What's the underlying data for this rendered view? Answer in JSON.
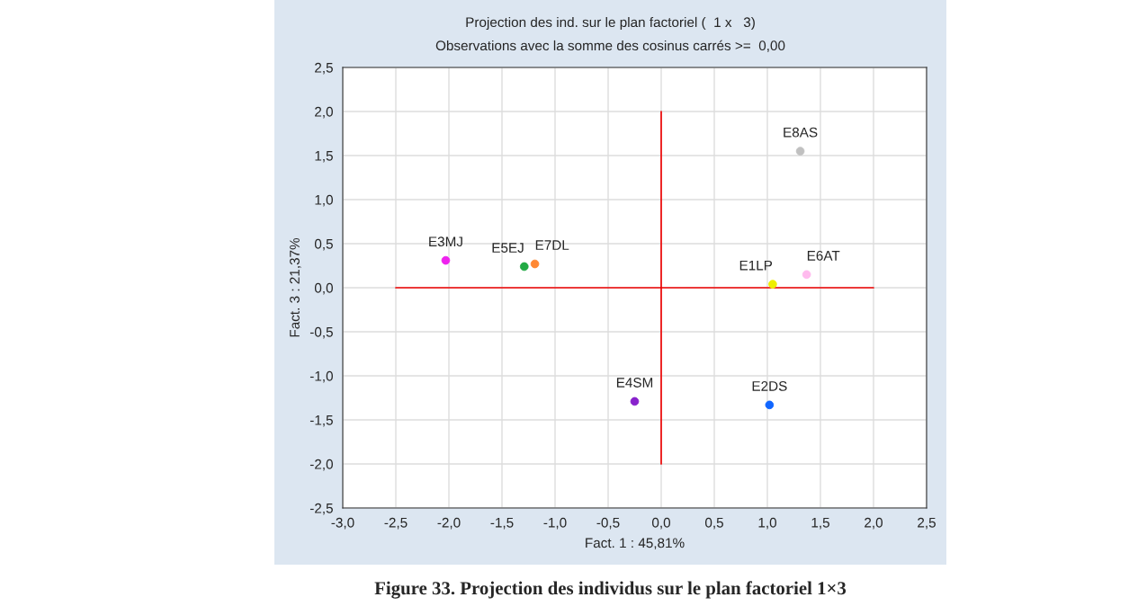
{
  "chart_data": {
    "type": "scatter",
    "title": "Projection des ind. sur le plan factoriel (  1 x   3)",
    "subtitle": "Observations avec la somme des cosinus carrés >=  0,00",
    "xlabel": "Fact. 1 : 45,81%",
    "ylabel": "Fact. 3 : 21,37%",
    "series": [
      {
        "marker": "circle",
        "x": [
          -2.03,
          -1.29,
          -1.19,
          1.31,
          1.05,
          1.37,
          -0.25,
          1.02
        ],
        "values": [
          0.31,
          0.24,
          0.27,
          1.55,
          0.04,
          0.15,
          -1.29,
          -1.33
        ],
        "colors": [
          "#ee22ee",
          "#22aa44",
          "#ff8833",
          "#c0c0c0",
          "#eeee00",
          "#ffbbee",
          "#8822cc",
          "#1166ff"
        ]
      },
      {
        "type": "line",
        "x": [
          -2.5,
          2.0
        ],
        "values": [
          0,
          0
        ],
        "color": "#ee0000"
      },
      {
        "type": "line",
        "x": [
          0,
          0
        ],
        "values": [
          -2.0,
          2.0
        ],
        "color": "#ee0000"
      }
    ],
    "annotations": [
      {
        "text": "E3MJ",
        "x": -2.03,
        "y": 0.31
      },
      {
        "text": "E5EJ",
        "x": -1.29,
        "y": 0.24
      },
      {
        "text": "E7DL",
        "x": -1.19,
        "y": 0.27
      },
      {
        "text": "E8AS",
        "x": 1.31,
        "y": 1.55
      },
      {
        "text": "E1LP",
        "x": 1.05,
        "y": 0.04
      },
      {
        "text": "E6AT",
        "x": 1.37,
        "y": 0.15
      },
      {
        "text": "E4SM",
        "x": -0.25,
        "y": -1.29
      },
      {
        "text": "E2DS",
        "x": 1.02,
        "y": -1.33
      },
      "Figure 33. Projection des individus sur le plan factoriel 1×3"
    ],
    "xlim": [
      -3.0,
      2.5
    ],
    "xticks": [
      {
        "value": -3.0,
        "label": "-3,0"
      },
      {
        "value": -2.5,
        "label": "-2,5"
      },
      {
        "value": -2.0,
        "label": "-2,0"
      },
      {
        "value": -1.5,
        "label": "-1,5"
      },
      {
        "value": -1.0,
        "label": "-1,0"
      },
      {
        "value": -0.5,
        "label": "-0,5"
      },
      {
        "value": 0.0,
        "label": "0,0"
      },
      {
        "value": 0.5,
        "label": "0,5"
      },
      {
        "value": 1.0,
        "label": "1,0"
      },
      {
        "value": 1.5,
        "label": "1,5"
      },
      {
        "value": 2.0,
        "label": "2,0"
      },
      {
        "value": 2.5,
        "label": "2,5"
      }
    ],
    "ylim": [
      -2.5,
      2.5
    ],
    "yticks": [
      {
        "value": -2.5,
        "label": "-2,5"
      },
      {
        "value": -2.0,
        "label": "-2,0"
      },
      {
        "value": -1.5,
        "label": "-1,5"
      },
      {
        "value": -1.0,
        "label": "-1,0"
      },
      {
        "value": -0.5,
        "label": "-0,5"
      },
      {
        "value": 0.0,
        "label": "0,0"
      },
      {
        "value": 0.5,
        "label": "0,5"
      },
      {
        "value": 1.0,
        "label": "1,0"
      },
      {
        "value": 1.5,
        "label": "1,5"
      },
      {
        "value": 2.0,
        "label": "2,0"
      },
      {
        "value": 2.5,
        "label": "2,5"
      }
    ],
    "grid": true
  }
}
